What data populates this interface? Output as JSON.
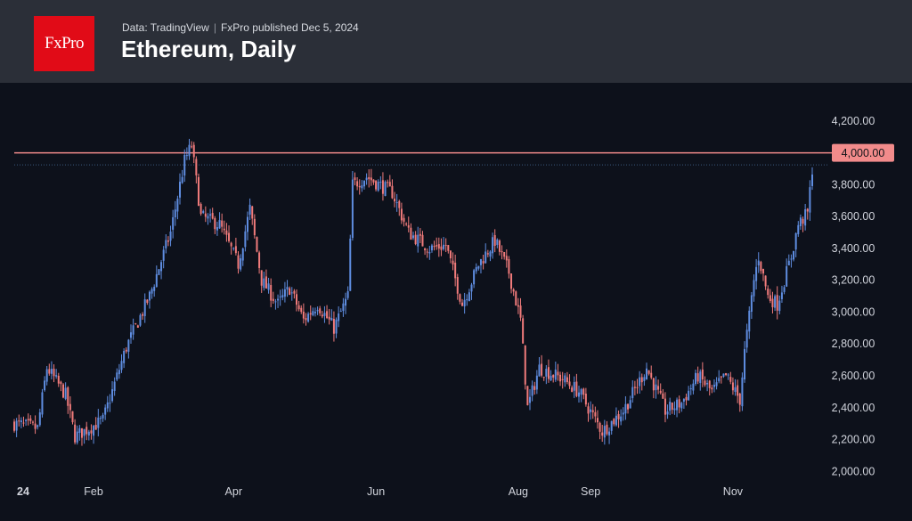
{
  "header": {
    "logo_text": "FxPro",
    "source": "Data: TradingView",
    "published": "FxPro published Dec 5, 2024",
    "title": "Ethereum, Daily"
  },
  "colors": {
    "background": "#0d111b",
    "header_bg": "#2b2f38",
    "logo_bg": "#e10b17",
    "up_candle": "#5f8de0",
    "down_candle": "#f07b7b",
    "level_line": "#f08a8a",
    "level_label_bg": "#f28b8b"
  },
  "chart_data": {
    "type": "candlestick",
    "title": "Ethereum, Daily",
    "y_axis": {
      "ticks": [
        "2,000.00",
        "2,200.00",
        "2,400.00",
        "2,600.00",
        "2,800.00",
        "3,000.00",
        "3,200.00",
        "3,400.00",
        "3,600.00",
        "3,800.00",
        "4,200.00"
      ],
      "tick_values": [
        2000,
        2200,
        2400,
        2600,
        2800,
        3000,
        3200,
        3400,
        3600,
        3800,
        4200
      ],
      "range": [
        1940,
        4440
      ]
    },
    "x_axis": {
      "ticks": [
        "24",
        "Feb",
        "Apr",
        "Jun",
        "Aug",
        "Sep",
        "Nov"
      ],
      "tick_dates": [
        "2024-01-01",
        "2024-02-01",
        "2024-04-01",
        "2024-06-01",
        "2024-08-01",
        "2024-09-01",
        "2024-11-01"
      ],
      "range": [
        "2023-12-29",
        "2024-12-05"
      ]
    },
    "horizontal_level": {
      "value": 4000,
      "label": "4,000.00"
    },
    "current_price_line": 3925,
    "grid": false,
    "anchors": [
      [
        "2023-12-29",
        2300
      ],
      [
        "2024-01-08",
        2270
      ],
      [
        "2024-01-12",
        2650
      ],
      [
        "2024-01-20",
        2480
      ],
      [
        "2024-01-24",
        2220
      ],
      [
        "2024-02-05",
        2320
      ],
      [
        "2024-02-15",
        2780
      ],
      [
        "2024-02-25",
        3100
      ],
      [
        "2024-03-05",
        3500
      ],
      [
        "2024-03-11",
        3950
      ],
      [
        "2024-03-14",
        4050
      ],
      [
        "2024-03-18",
        3600
      ],
      [
        "2024-03-26",
        3550
      ],
      [
        "2024-04-03",
        3300
      ],
      [
        "2024-04-08",
        3650
      ],
      [
        "2024-04-13",
        3200
      ],
      [
        "2024-04-20",
        3050
      ],
      [
        "2024-04-25",
        3150
      ],
      [
        "2024-05-01",
        2950
      ],
      [
        "2024-05-07",
        3050
      ],
      [
        "2024-05-14",
        2900
      ],
      [
        "2024-05-20",
        3100
      ],
      [
        "2024-05-22",
        3800
      ],
      [
        "2024-05-28",
        3850
      ],
      [
        "2024-06-08",
        3750
      ],
      [
        "2024-06-15",
        3500
      ],
      [
        "2024-06-24",
        3400
      ],
      [
        "2024-07-01",
        3420
      ],
      [
        "2024-07-08",
        3050
      ],
      [
        "2024-07-15",
        3300
      ],
      [
        "2024-07-22",
        3450
      ],
      [
        "2024-07-28",
        3250
      ],
      [
        "2024-08-02",
        2950
      ],
      [
        "2024-08-05",
        2400
      ],
      [
        "2024-08-10",
        2650
      ],
      [
        "2024-08-20",
        2580
      ],
      [
        "2024-08-27",
        2500
      ],
      [
        "2024-09-06",
        2250
      ],
      [
        "2024-09-15",
        2380
      ],
      [
        "2024-09-25",
        2650
      ],
      [
        "2024-10-03",
        2380
      ],
      [
        "2024-10-10",
        2430
      ],
      [
        "2024-10-17",
        2600
      ],
      [
        "2024-10-23",
        2500
      ],
      [
        "2024-10-29",
        2600
      ],
      [
        "2024-11-04",
        2450
      ],
      [
        "2024-11-06",
        2750
      ],
      [
        "2024-11-10",
        3200
      ],
      [
        "2024-11-12",
        3350
      ],
      [
        "2024-11-16",
        3100
      ],
      [
        "2024-11-20",
        3050
      ],
      [
        "2024-11-26",
        3350
      ],
      [
        "2024-11-29",
        3550
      ],
      [
        "2024-12-03",
        3620
      ],
      [
        "2024-12-05",
        3900
      ]
    ]
  }
}
